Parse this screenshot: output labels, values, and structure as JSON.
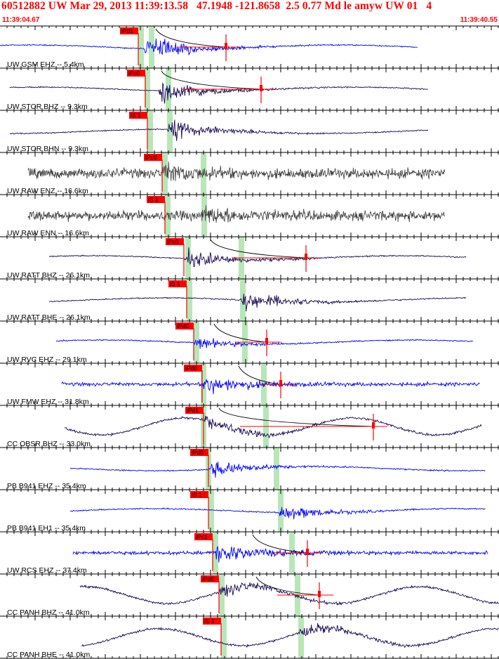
{
  "header": {
    "title": "60512882 UW Mar 29, 2013 11:39:13.58   47.1948 -121.8658  2.5 0.77 Md le amyw UW 01   4",
    "time_start": "11:39:04.67",
    "time_end": "11:39:40.55"
  },
  "colors": {
    "header_text": "#ff0000",
    "pick_flag": "#ff0000",
    "pick_band": "#b8e6b8",
    "trace_blue": "#0000ff",
    "trace_navy": "#1a0a55",
    "trace_gray": "#3c3c3c",
    "tick": "#000000",
    "arrival_curve": "#000000",
    "amplitude_mark": "#ff0000"
  },
  "traces": [
    {
      "label": "UW GSM EHZ -- 5.4km",
      "pick": "iPd1",
      "color": "blue",
      "style": "spiky"
    },
    {
      "label": "UW STOR BHZ -- 9.3km",
      "pick": "iPc0",
      "color": "navy",
      "style": "spiky"
    },
    {
      "label": "UW STOR BHN -- 9.3km",
      "pick": "iS 1",
      "color": "navy",
      "style": "spiky"
    },
    {
      "label": "UW RAW ENZ -- 16.6km",
      "pick": "iPc0",
      "color": "gray",
      "style": "noise"
    },
    {
      "label": "UW RAW ENN -- 16.6km",
      "pick": "iS 1",
      "color": "gray",
      "style": "noise"
    },
    {
      "label": "UW RATT BHZ -- 26.1km",
      "pick": "iPc0",
      "color": "navy",
      "style": "spiky"
    },
    {
      "label": "UW RATT BHE -- 26.1km",
      "pick": "iS 1",
      "color": "navy",
      "style": "spiky"
    },
    {
      "label": "UW RVC EHZ -- 29.1km",
      "pick": "iPd0",
      "color": "blue",
      "style": "spiky"
    },
    {
      "label": "UW FMW EHZ -- 31.8km",
      "pick": "iPd0",
      "color": "blue",
      "style": "busy"
    },
    {
      "label": "CC OBSR BHZ -- 33.0km",
      "pick": "iPd1",
      "color": "navy",
      "style": "wavy"
    },
    {
      "label": "PB B941 EHZ -- 35.4km",
      "pick": "iPd0",
      "color": "blue",
      "style": "spiky"
    },
    {
      "label": "PB B941 EH1 -- 35.4km",
      "pick": "iS 1",
      "color": "blue",
      "style": "spiky"
    },
    {
      "label": "UW RCS EHZ -- 37.4km",
      "pick": "iPc1",
      "color": "blue",
      "style": "busy"
    },
    {
      "label": "CC PANH BHZ -- 41.0km",
      "pick": "iPd0",
      "color": "navy",
      "style": "wavy"
    },
    {
      "label": "CC PANH BHE -- 41.0km",
      "pick": "iS 1",
      "color": "navy",
      "style": "wavy"
    }
  ]
}
